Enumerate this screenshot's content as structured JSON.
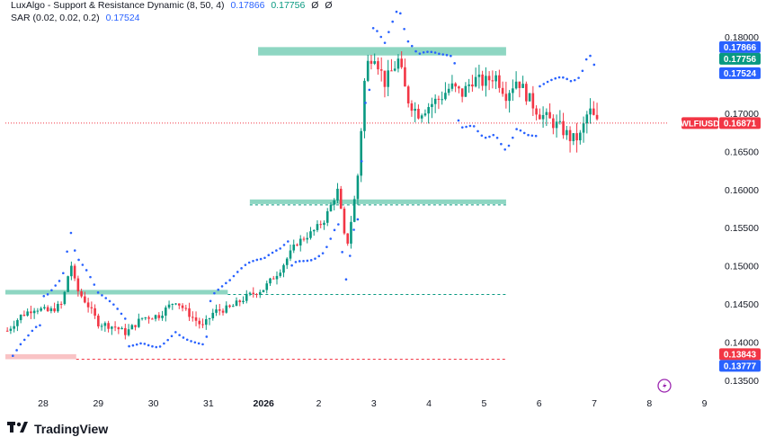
{
  "legend": {
    "indicator1": {
      "name": "LuxAlgo - Support & Resistance Dynamic (8, 50, 4)",
      "v1": "0.17866",
      "v2": "0.17756",
      "v3": "Ø",
      "v4": "Ø"
    },
    "indicator2": {
      "name": "SAR (0.02, 0.02, 0.2)",
      "v1": "0.17524"
    }
  },
  "footer": {
    "brand": "TradingView"
  },
  "colors": {
    "up": "#089981",
    "down": "#f23645",
    "sar": "#2962ff",
    "zone_green": "#5ec4a8",
    "zone_red": "#f7a9ad",
    "last_price": "#f23645"
  },
  "chart_data": {
    "type": "candlestick",
    "symbol": "WLFIUSD",
    "y_axis_ticks": [
      "0.18000",
      "0.17500",
      "0.17000",
      "0.16500",
      "0.16000",
      "0.15500",
      "0.15000",
      "0.14500",
      "0.14000",
      "0.13500"
    ],
    "x_axis_ticks": [
      "28",
      "29",
      "30",
      "31",
      "2026",
      "2",
      "3",
      "4",
      "5",
      "6",
      "7",
      "8",
      "9"
    ],
    "ylim": [
      0.1325,
      0.1825
    ],
    "last_price": 0.16871,
    "price_tags": [
      {
        "label": "0.17866",
        "value": 0.17866,
        "color": "#2962ff"
      },
      {
        "label": "0.17756",
        "value": 0.17756,
        "color": "#089981"
      },
      {
        "label": "0.17524",
        "value": 0.17524,
        "color": "#2962ff"
      },
      {
        "label": "0.16871",
        "value": 0.16871,
        "color": "#f23645"
      },
      {
        "label": "0.13843",
        "value": 0.13843,
        "color": "#f23645"
      },
      {
        "label": "0.13777",
        "value": 0.13777,
        "color": "#2962ff"
      }
    ],
    "zones": [
      {
        "top": 0.17866,
        "bottom": 0.17756,
        "from_day": 3.9,
        "to_day": 8.4,
        "color": "green"
      },
      {
        "top": 0.1587,
        "bottom": 0.1581,
        "from_day": 3.75,
        "to_day": 8.4,
        "color": "green"
      },
      {
        "top": 0.14685,
        "bottom": 0.14625,
        "from_day": -0.7,
        "to_day": 3.35,
        "color": "green",
        "dash_to_day": 8.4
      },
      {
        "top": 0.13843,
        "bottom": 0.13777,
        "from_day": -0.7,
        "to_day": 0.6,
        "color": "red",
        "dash_to_day": 8.4
      }
    ],
    "close_series": [
      {
        "day": -0.65,
        "close": 0.1415
      },
      {
        "day": -0.4,
        "close": 0.1435
      },
      {
        "day": -0.15,
        "close": 0.1445
      },
      {
        "day": 0.1,
        "close": 0.144
      },
      {
        "day": 0.35,
        "close": 0.145
      },
      {
        "day": 0.5,
        "close": 0.1505
      },
      {
        "day": 0.6,
        "close": 0.147
      },
      {
        "day": 0.8,
        "close": 0.145
      },
      {
        "day": 1.0,
        "close": 0.1425
      },
      {
        "day": 1.3,
        "close": 0.142
      },
      {
        "day": 1.5,
        "close": 0.1412
      },
      {
        "day": 1.8,
        "close": 0.1432
      },
      {
        "day": 2.1,
        "close": 0.1435
      },
      {
        "day": 2.4,
        "close": 0.1455
      },
      {
        "day": 2.6,
        "close": 0.144
      },
      {
        "day": 2.9,
        "close": 0.142
      },
      {
        "day": 3.1,
        "close": 0.144
      },
      {
        "day": 3.4,
        "close": 0.1445
      },
      {
        "day": 3.7,
        "close": 0.146
      },
      {
        "day": 4.0,
        "close": 0.147
      },
      {
        "day": 4.3,
        "close": 0.1495
      },
      {
        "day": 4.6,
        "close": 0.153
      },
      {
        "day": 4.9,
        "close": 0.1545
      },
      {
        "day": 5.1,
        "close": 0.156
      },
      {
        "day": 5.35,
        "close": 0.16
      },
      {
        "day": 5.5,
        "close": 0.152
      },
      {
        "day": 5.7,
        "close": 0.161
      },
      {
        "day": 5.85,
        "close": 0.176
      },
      {
        "day": 6.0,
        "close": 0.178
      },
      {
        "day": 6.2,
        "close": 0.174
      },
      {
        "day": 6.45,
        "close": 0.177
      },
      {
        "day": 6.6,
        "close": 0.172
      },
      {
        "day": 6.8,
        "close": 0.17
      },
      {
        "day": 7.0,
        "close": 0.171
      },
      {
        "day": 7.2,
        "close": 0.172
      },
      {
        "day": 7.4,
        "close": 0.1735
      },
      {
        "day": 7.6,
        "close": 0.1725
      },
      {
        "day": 7.8,
        "close": 0.1745
      },
      {
        "day": 8.0,
        "close": 0.174
      },
      {
        "day": 8.2,
        "close": 0.175
      },
      {
        "day": 8.4,
        "close": 0.1725
      },
      {
        "day": 8.6,
        "close": 0.1745
      },
      {
        "day": 8.8,
        "close": 0.172
      },
      {
        "day": 9.0,
        "close": 0.17
      },
      {
        "day": 9.2,
        "close": 0.169
      },
      {
        "day": 9.4,
        "close": 0.168
      },
      {
        "day": 9.6,
        "close": 0.1665
      },
      {
        "day": 9.75,
        "close": 0.167
      },
      {
        "day": 9.9,
        "close": 0.1705
      },
      {
        "day": 10.05,
        "close": 0.1687
      }
    ]
  }
}
